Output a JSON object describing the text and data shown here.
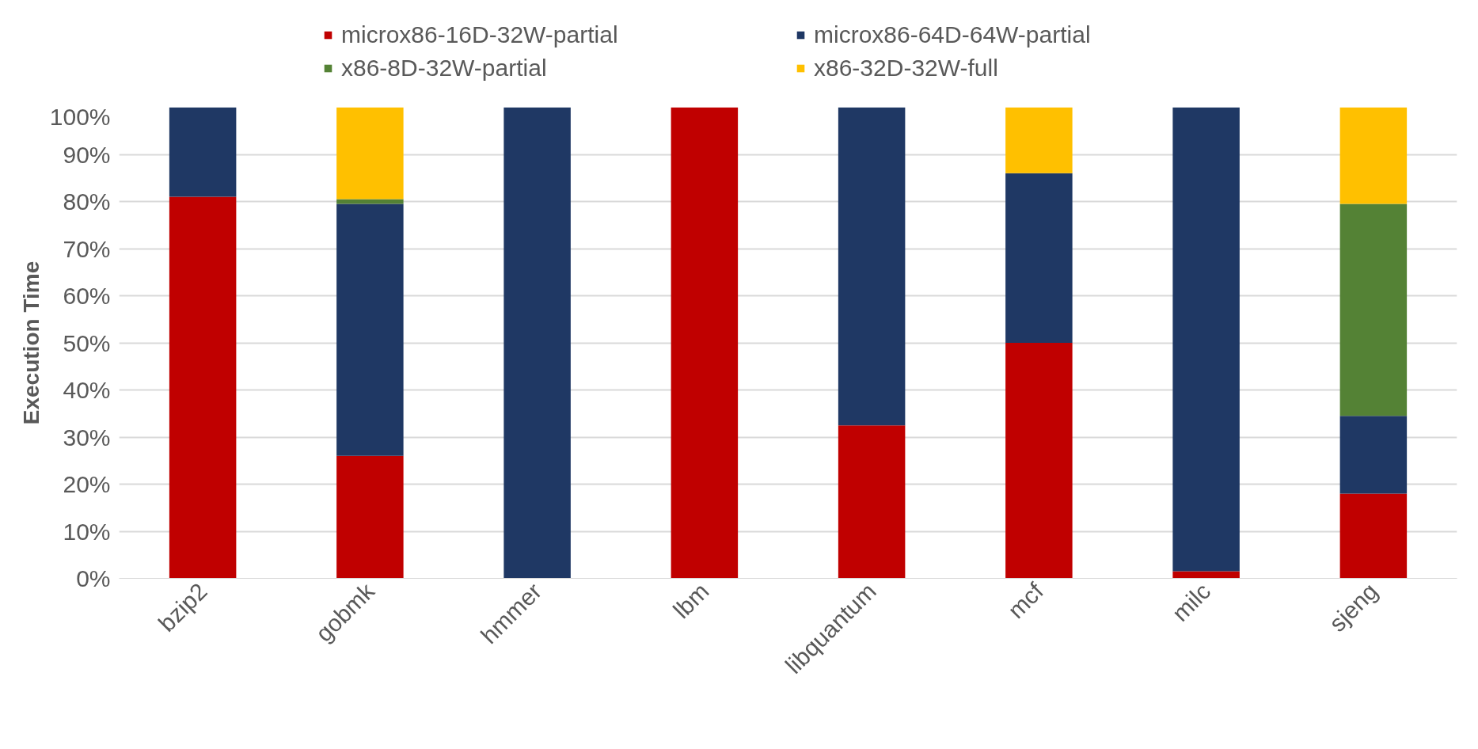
{
  "chart_data": {
    "type": "bar",
    "stacked": true,
    "ylabel": "Execution Time",
    "categories": [
      "bzip2",
      "gobmk",
      "hmmer",
      "lbm",
      "libquantum",
      "mcf",
      "milc",
      "sjeng"
    ],
    "series": [
      {
        "name": "microx86-16D-32W-partial",
        "color": "#c00000",
        "values": [
          81,
          26,
          0,
          100,
          32.5,
          50,
          1.5,
          18
        ]
      },
      {
        "name": "microx86-64D-64W-partial",
        "color": "#1f3864",
        "values": [
          19,
          53.5,
          100,
          0,
          67.5,
          36,
          98.5,
          16.5
        ]
      },
      {
        "name": "x86-8D-32W-partial",
        "color": "#548235",
        "values": [
          0,
          1,
          0,
          0,
          0,
          0,
          0,
          45
        ]
      },
      {
        "name": "x86-32D-32W-full",
        "color": "#ffc000",
        "values": [
          0,
          19.5,
          0,
          0,
          0,
          14,
          0,
          20.5
        ]
      }
    ],
    "ylim": [
      0,
      100
    ],
    "yticks": [
      {
        "value": 0,
        "label": "0%"
      },
      {
        "value": 10,
        "label": "10%"
      },
      {
        "value": 20,
        "label": "20%"
      },
      {
        "value": 30,
        "label": "30%"
      },
      {
        "value": 40,
        "label": "40%"
      },
      {
        "value": 50,
        "label": "50%"
      },
      {
        "value": 60,
        "label": "60%"
      },
      {
        "value": 70,
        "label": "70%"
      },
      {
        "value": 80,
        "label": "80%"
      },
      {
        "value": 90,
        "label": "90%"
      },
      {
        "value": 100,
        "label": "100%"
      }
    ],
    "grid": "y",
    "legend": "top"
  }
}
